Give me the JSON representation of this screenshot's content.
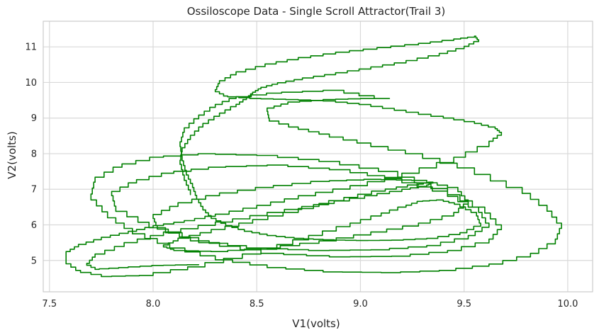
{
  "chart_data": {
    "type": "line",
    "title": "Ossiloscope Data - Single Scroll Attractor(Trail 3)",
    "xlabel": "V1(volts)",
    "ylabel": "V2(volts)",
    "xlim": [
      7.47,
      10.12
    ],
    "ylim": [
      4.12,
      11.72
    ],
    "xticks": [
      7.5,
      8.0,
      8.5,
      9.0,
      9.5,
      10.0
    ],
    "yticks": [
      5,
      6,
      7,
      8,
      9,
      10,
      11
    ],
    "xtick_labels": [
      "7.5",
      "8.0",
      "8.5",
      "9.0",
      "9.5",
      "10.0"
    ],
    "ytick_labels": [
      "5",
      "6",
      "7",
      "8",
      "9",
      "10",
      "11"
    ],
    "grid": true,
    "legend": "none",
    "series": [
      {
        "color": "#008000",
        "x": [
          8.22,
          8.05,
          7.88,
          7.74,
          7.68,
          7.72,
          7.86,
          8.05,
          8.3,
          8.55,
          8.8,
          9.02,
          9.2,
          9.32,
          9.35,
          9.28,
          9.12,
          8.92,
          8.7,
          8.48,
          8.28,
          8.12,
          8.05,
          8.1,
          8.28,
          8.52,
          8.8,
          9.05,
          9.28,
          9.45,
          9.52,
          9.47,
          9.32,
          9.1,
          8.85,
          8.58,
          8.32,
          8.12,
          8.0,
          8.02,
          8.18,
          8.45,
          8.75,
          9.05,
          9.32,
          9.52,
          9.62,
          9.57,
          9.42,
          9.2,
          8.95,
          8.65,
          8.35,
          8.1,
          7.92,
          7.8,
          7.82,
          7.98,
          8.22,
          8.52,
          8.85,
          9.15,
          9.42,
          9.62,
          9.68,
          9.6,
          9.42,
          9.18,
          8.9,
          8.6,
          8.3,
          8.05,
          7.85,
          7.72,
          7.7,
          7.78,
          7.9,
          8.08,
          8.3,
          8.55,
          8.82,
          9.1,
          9.38,
          9.62,
          9.82,
          9.94,
          9.97,
          9.9,
          9.78,
          9.55,
          9.3,
          9.05,
          8.85,
          8.7,
          8.56,
          8.55,
          8.65,
          8.82,
          9.0,
          9.14,
          8.92,
          8.62,
          8.4,
          8.3,
          8.22,
          8.15,
          8.13,
          8.14,
          8.16,
          8.19,
          8.21,
          8.24,
          8.28,
          8.35,
          8.44,
          8.55,
          8.68,
          8.82,
          8.98,
          9.15,
          9.32,
          9.48,
          9.58,
          9.56,
          9.48,
          9.4,
          9.3,
          9.22,
          9.1,
          8.95,
          8.75,
          8.52,
          8.25,
          8.0,
          7.8,
          7.65,
          7.58,
          7.58,
          7.64,
          7.75,
          7.88,
          8.0,
          8.15,
          8.3,
          8.5,
          8.7,
          8.95,
          9.2,
          9.45,
          9.62,
          9.68
        ],
        "y": [
          4.88,
          4.86,
          4.8,
          4.75,
          4.92,
          5.18,
          5.5,
          5.8,
          6.08,
          6.35,
          6.6,
          6.82,
          7.0,
          7.12,
          7.2,
          7.12,
          6.95,
          6.68,
          6.35,
          6.05,
          5.78,
          5.55,
          5.38,
          5.28,
          5.25,
          5.35,
          5.55,
          5.8,
          6.05,
          6.35,
          6.7,
          7.05,
          7.25,
          7.28,
          7.22,
          7.05,
          6.82,
          6.52,
          6.18,
          5.88,
          5.55,
          5.35,
          5.28,
          5.3,
          5.42,
          5.7,
          6.05,
          6.5,
          6.95,
          7.3,
          7.55,
          7.68,
          7.62,
          7.45,
          7.18,
          6.82,
          6.38,
          5.92,
          5.5,
          5.2,
          5.1,
          5.12,
          5.28,
          5.6,
          6.0,
          6.5,
          7.02,
          7.5,
          7.78,
          7.95,
          8.0,
          7.9,
          7.62,
          7.2,
          6.7,
          6.2,
          5.75,
          5.35,
          5.02,
          4.8,
          4.68,
          4.66,
          4.72,
          4.9,
          5.2,
          5.6,
          6.05,
          6.55,
          7.05,
          7.6,
          8.0,
          8.3,
          8.55,
          8.75,
          9.0,
          9.28,
          9.45,
          9.52,
          9.55,
          9.55,
          9.78,
          9.7,
          9.55,
          9.3,
          8.98,
          8.6,
          8.2,
          7.8,
          7.4,
          7.05,
          6.72,
          6.42,
          6.18,
          5.98,
          5.82,
          5.7,
          5.62,
          5.58,
          5.56,
          5.57,
          5.62,
          5.78,
          6.05,
          6.35,
          6.58,
          6.7,
          6.66,
          6.5,
          6.25,
          5.95,
          5.58,
          5.18,
          4.82,
          4.58,
          4.55,
          4.72,
          5.0,
          5.25,
          5.45,
          5.65,
          5.82,
          5.98,
          6.12,
          6.3,
          6.55,
          6.82,
          7.1,
          7.45,
          7.9,
          8.35,
          8.6
        ]
      },
      {
        "color": "#008000",
        "x": [
          9.68,
          9.65,
          9.55,
          9.4,
          9.22,
          9.05,
          8.88,
          8.7,
          8.52,
          8.36,
          8.3,
          8.32,
          8.4,
          8.54,
          8.7,
          8.88,
          9.08,
          9.28,
          9.45,
          9.55,
          9.57,
          9.5,
          9.38,
          9.22,
          9.05,
          8.88,
          8.72,
          8.6,
          8.52,
          8.48,
          8.45,
          8.4,
          8.32,
          8.24,
          8.18,
          8.14,
          8.13,
          8.15,
          8.18
        ],
        "y": [
          8.6,
          8.75,
          8.9,
          9.05,
          9.22,
          9.38,
          9.48,
          9.52,
          9.55,
          9.62,
          9.8,
          10.05,
          10.3,
          10.52,
          10.7,
          10.85,
          10.98,
          11.1,
          11.22,
          11.3,
          11.15,
          10.95,
          10.75,
          10.55,
          10.38,
          10.22,
          10.08,
          9.95,
          9.82,
          9.68,
          9.52,
          9.32,
          9.05,
          8.75,
          8.4,
          8.05,
          7.7,
          7.25,
          6.85
        ]
      }
    ]
  }
}
